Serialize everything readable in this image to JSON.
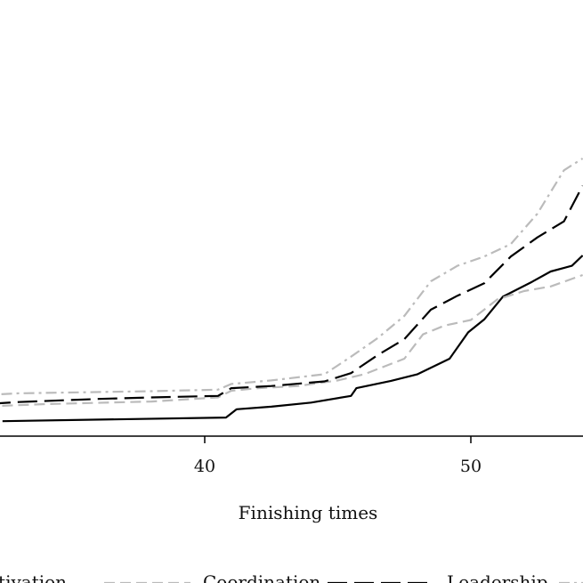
{
  "chart_data": {
    "type": "line",
    "xlabel": "Finishing times",
    "ylabel": "",
    "title": "",
    "xlim": [
      30.0,
      54.2
    ],
    "ylim": [
      0,
      1
    ],
    "xticks": [
      40,
      50
    ],
    "grid": false,
    "legend_placement": "bottom",
    "series": [
      {
        "name": "Motivation",
        "color": "#000000",
        "dash": "solid",
        "visible_label": "otivation",
        "points": [
          [
            32.4,
            0.029
          ],
          [
            40.8,
            0.036
          ],
          [
            41.2,
            0.052
          ],
          [
            42.5,
            0.057
          ],
          [
            44.0,
            0.065
          ],
          [
            45.5,
            0.078
          ],
          [
            45.7,
            0.093
          ],
          [
            47.0,
            0.107
          ],
          [
            48.0,
            0.12
          ],
          [
            49.2,
            0.15
          ],
          [
            49.9,
            0.201
          ],
          [
            50.5,
            0.226
          ],
          [
            51.2,
            0.27
          ],
          [
            52.3,
            0.299
          ],
          [
            53.0,
            0.319
          ],
          [
            53.8,
            0.33
          ],
          [
            54.2,
            0.35
          ]
        ]
      },
      {
        "name": "Coordination",
        "color": "#bbbbbb",
        "dash": "dashed",
        "visible_label": "Coordination",
        "points": [
          [
            30.0,
            0.044
          ],
          [
            32.0,
            0.058
          ],
          [
            34.0,
            0.062
          ],
          [
            38.0,
            0.067
          ],
          [
            40.5,
            0.075
          ],
          [
            41.0,
            0.088
          ],
          [
            42.0,
            0.093
          ],
          [
            43.5,
            0.097
          ],
          [
            45.0,
            0.108
          ],
          [
            46.0,
            0.12
          ],
          [
            47.5,
            0.15
          ],
          [
            48.2,
            0.197
          ],
          [
            49.0,
            0.214
          ],
          [
            50.0,
            0.225
          ],
          [
            51.0,
            0.265
          ],
          [
            52.0,
            0.281
          ],
          [
            53.0,
            0.29
          ],
          [
            54.2,
            0.312
          ]
        ]
      },
      {
        "name": "Leadership",
        "color": "#000000",
        "dash": "longdash",
        "visible_label": "Leadership",
        "points": [
          [
            30.0,
            0.044
          ],
          [
            31.5,
            0.061
          ],
          [
            33.0,
            0.066
          ],
          [
            36.0,
            0.072
          ],
          [
            38.0,
            0.075
          ],
          [
            40.5,
            0.078
          ],
          [
            41.0,
            0.093
          ],
          [
            42.5,
            0.097
          ],
          [
            44.5,
            0.106
          ],
          [
            45.5,
            0.122
          ],
          [
            46.5,
            0.157
          ],
          [
            47.5,
            0.188
          ],
          [
            48.5,
            0.245
          ],
          [
            49.5,
            0.272
          ],
          [
            50.5,
            0.296
          ],
          [
            51.5,
            0.348
          ],
          [
            52.5,
            0.385
          ],
          [
            53.5,
            0.416
          ],
          [
            54.2,
            0.485
          ]
        ]
      },
      {
        "name": "",
        "color": "#bbbbbb",
        "dash": "dashdot",
        "visible_label": "",
        "points": [
          [
            30.0,
            0.044
          ],
          [
            31.5,
            0.079
          ],
          [
            33.0,
            0.083
          ],
          [
            38.0,
            0.087
          ],
          [
            40.5,
            0.09
          ],
          [
            41.0,
            0.101
          ],
          [
            42.5,
            0.108
          ],
          [
            44.5,
            0.12
          ],
          [
            45.5,
            0.154
          ],
          [
            46.5,
            0.19
          ],
          [
            47.5,
            0.233
          ],
          [
            48.5,
            0.3
          ],
          [
            49.5,
            0.33
          ],
          [
            50.5,
            0.348
          ],
          [
            51.5,
            0.372
          ],
          [
            52.5,
            0.431
          ],
          [
            53.5,
            0.515
          ],
          [
            54.2,
            0.538
          ]
        ]
      }
    ]
  }
}
